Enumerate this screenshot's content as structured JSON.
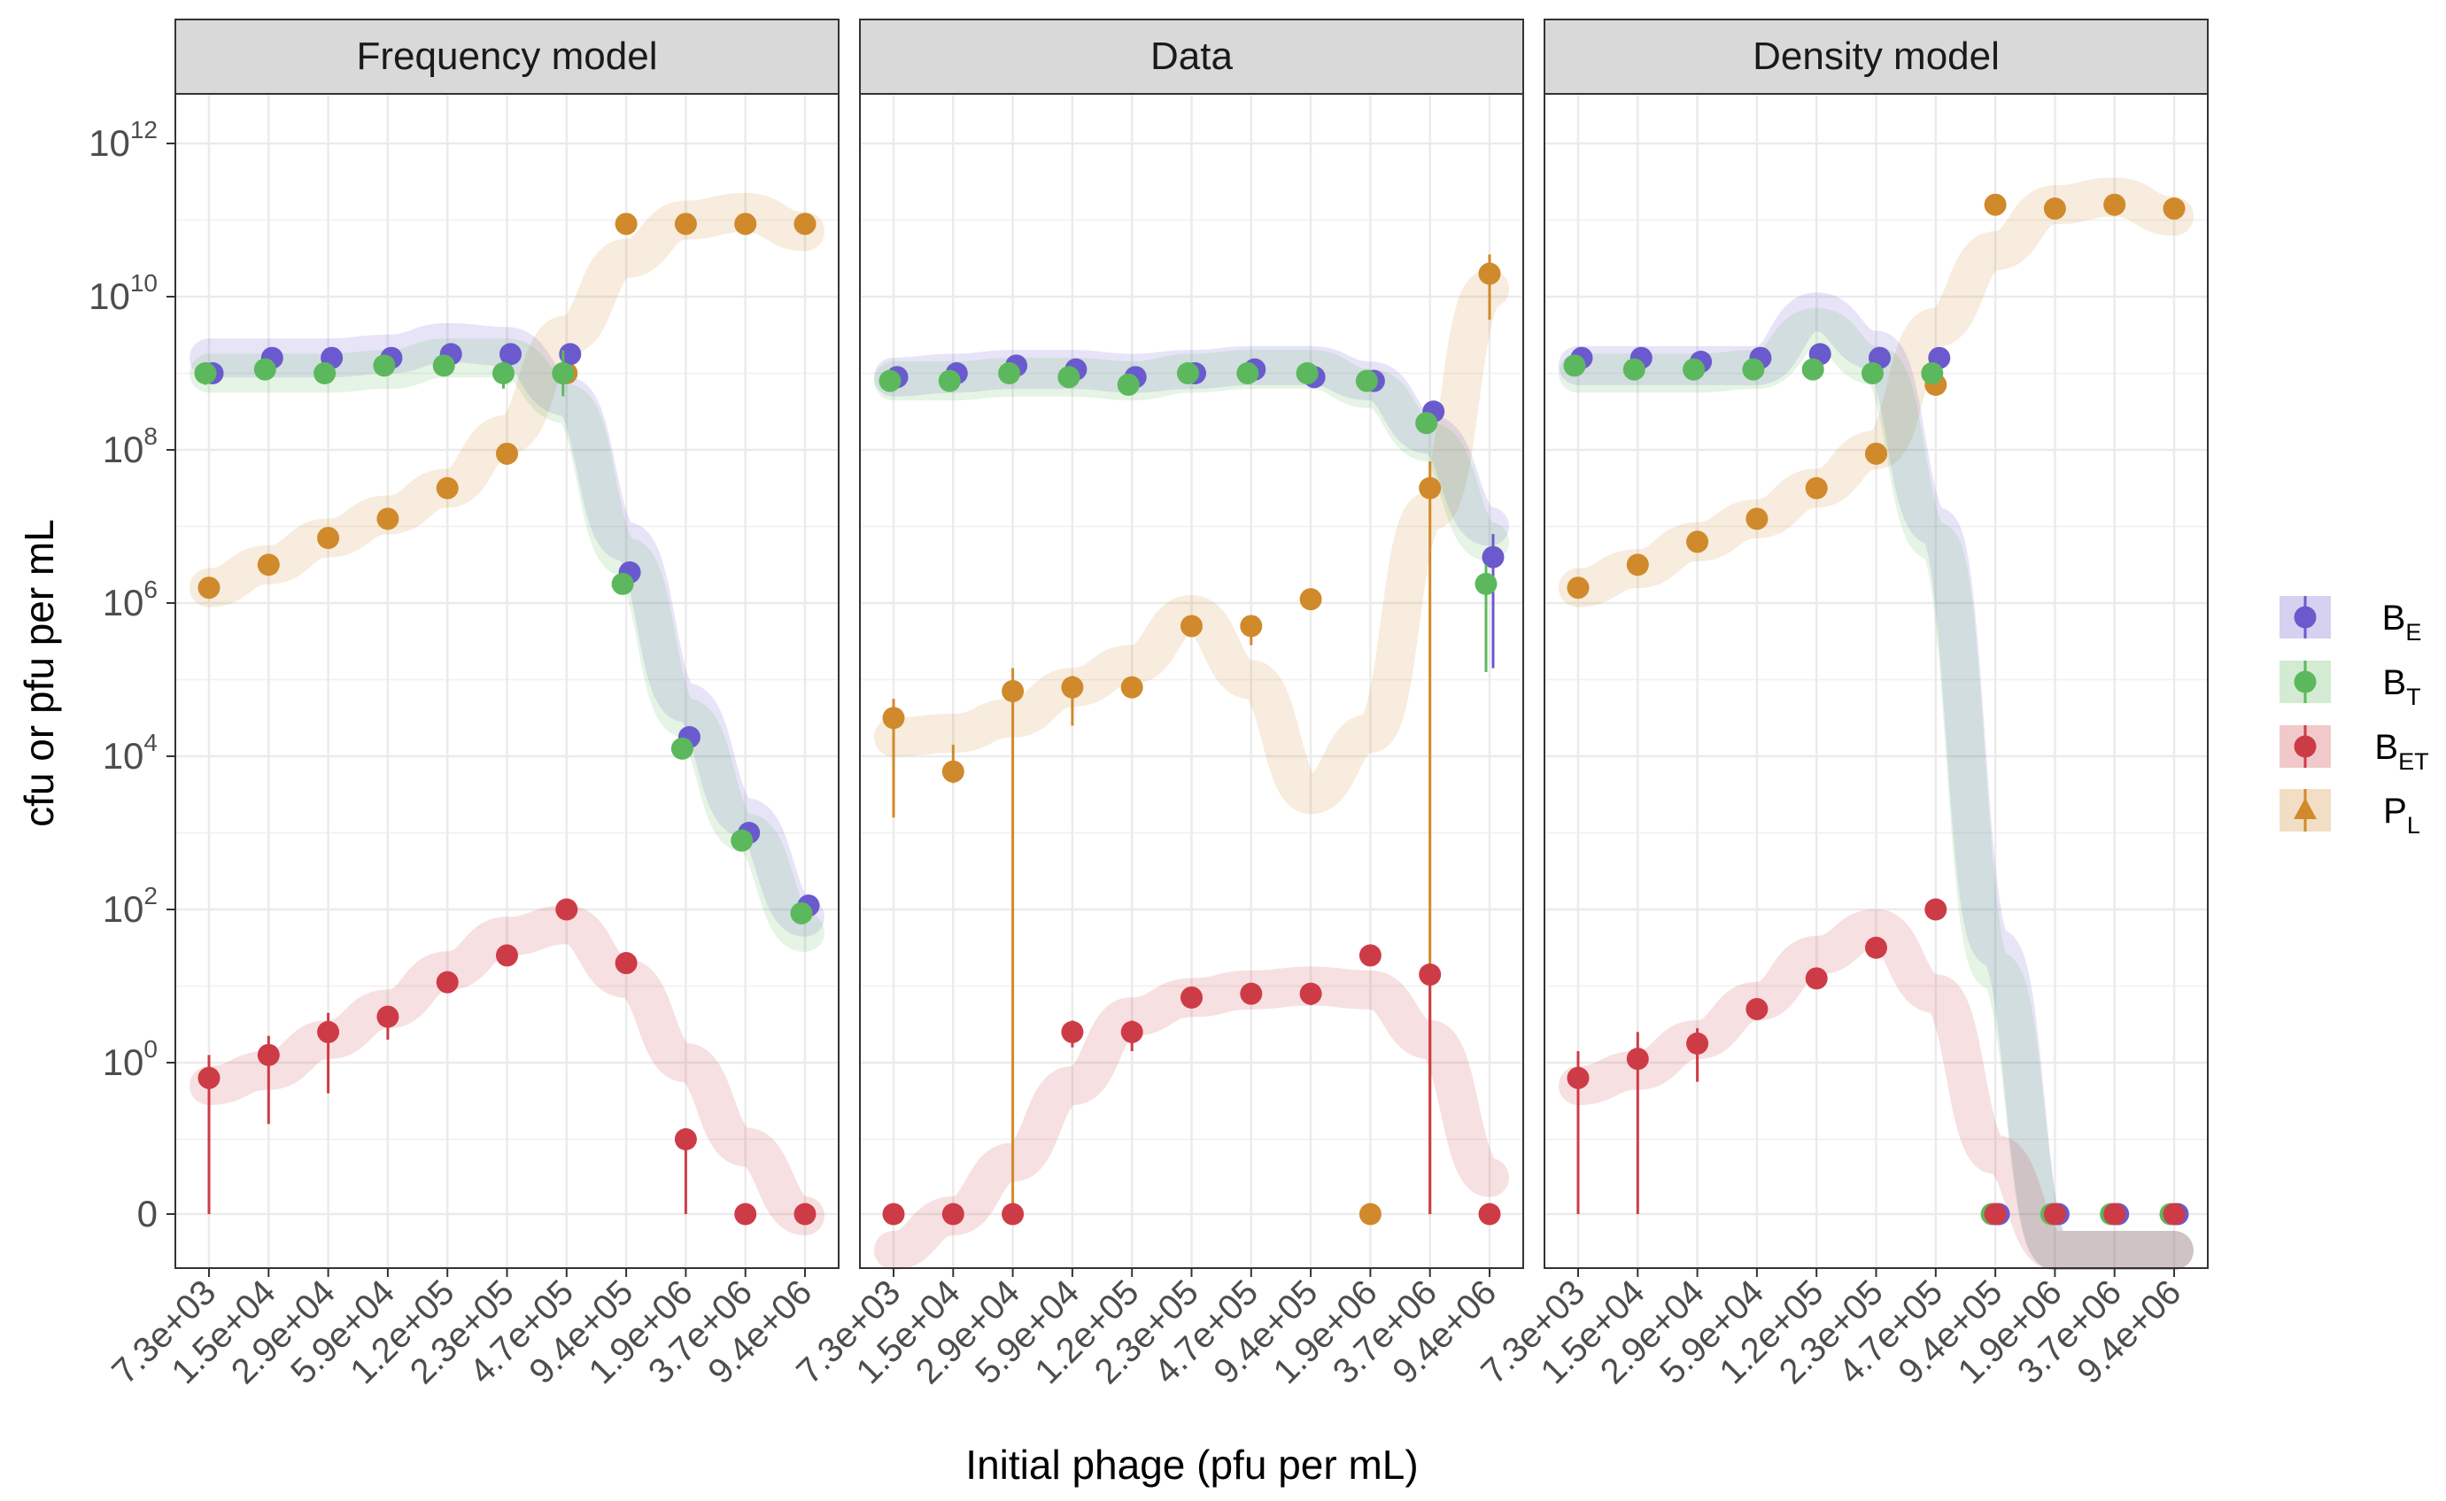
{
  "chart_data": {
    "type": "scatter",
    "xlabel": "Initial phage (pfu per mL)",
    "ylabel": "cfu or pfu per mL",
    "y_scale": "pseudo-log10",
    "y_ticks": [
      {
        "base": "0",
        "exp": ""
      },
      {
        "base": "10",
        "exp": "0"
      },
      {
        "base": "10",
        "exp": "2"
      },
      {
        "base": "10",
        "exp": "4"
      },
      {
        "base": "10",
        "exp": "6"
      },
      {
        "base": "10",
        "exp": "8"
      },
      {
        "base": "10",
        "exp": "10"
      },
      {
        "base": "10",
        "exp": "12"
      }
    ],
    "categories": [
      "7.3e+03",
      "1.5e+04",
      "2.9e+04",
      "5.9e+04",
      "1.2e+05",
      "2.3e+05",
      "4.7e+05",
      "9.4e+05",
      "1.9e+06",
      "3.7e+06",
      "9.4e+06"
    ],
    "grid": true,
    "legend_position": "right",
    "legend": [
      {
        "key": "BE",
        "base": "B",
        "sub": "E",
        "color": "#6a5acd"
      },
      {
        "key": "BT",
        "base": "B",
        "sub": "T",
        "color": "#5cb85c"
      },
      {
        "key": "BET",
        "base": "B",
        "sub": "ET",
        "color": "#cd3c46"
      },
      {
        "key": "PL",
        "base": "P",
        "sub": "L",
        "color": "#d08a2b"
      }
    ],
    "panels": [
      {
        "title": "Frequency model",
        "series": {
          "BE": {
            "values": [
              9.0,
              9.2,
              9.2,
              9.2,
              9.25,
              9.25,
              9.25,
              6.4,
              4.25,
              3.0,
              2.05
            ],
            "lo": [
              null,
              null,
              null,
              null,
              null,
              null,
              null,
              null,
              null,
              null,
              null
            ],
            "hi": [
              null,
              null,
              null,
              null,
              null,
              null,
              null,
              null,
              null,
              null,
              null
            ],
            "smooth": [
              9.2,
              9.2,
              9.2,
              9.25,
              9.4,
              9.35,
              8.7,
              6.8,
              4.7,
              3.2,
              1.9
            ]
          },
          "BT": {
            "values": [
              9.0,
              9.05,
              9.0,
              9.1,
              9.1,
              9.0,
              9.0,
              6.25,
              4.1,
              2.9,
              1.95
            ],
            "lo": [
              8.85,
              null,
              null,
              null,
              null,
              8.8,
              8.7,
              null,
              null,
              null,
              null
            ],
            "hi": [
              9.1,
              null,
              null,
              null,
              null,
              9.15,
              9.3,
              null,
              null,
              null,
              null
            ],
            "smooth": [
              9.0,
              9.0,
              9.0,
              9.05,
              9.2,
              9.2,
              8.6,
              6.6,
              4.5,
              3.0,
              1.7
            ]
          },
          "BET": {
            "values": [
              -0.2,
              0.1,
              0.4,
              0.6,
              1.05,
              1.4,
              2.0,
              1.3,
              -1.0,
              null,
              null
            ],
            "lo": [
              null,
              -0.8,
              -0.4,
              0.3,
              null,
              null,
              null,
              null,
              null,
              null,
              null
            ],
            "hi": [
              0.1,
              0.35,
              0.65,
              null,
              null,
              null,
              null,
              null,
              null,
              null,
              null
            ],
            "zero": [
              false,
              false,
              false,
              false,
              false,
              false,
              false,
              false,
              false,
              true,
              true
            ],
            "lo_to_zero": [
              true,
              false,
              false,
              false,
              false,
              false,
              false,
              false,
              true,
              false,
              false
            ],
            "smooth": [
              -0.3,
              -0.1,
              0.3,
              0.7,
              1.2,
              1.65,
              1.8,
              1.1,
              0.0,
              -1.1,
              -2.0
            ]
          },
          "PL": {
            "values": [
              6.2,
              6.5,
              6.85,
              7.1,
              7.5,
              7.95,
              9.0,
              10.95,
              10.95,
              10.95,
              10.95
            ],
            "lo": [
              null,
              null,
              null,
              null,
              null,
              null,
              null,
              null,
              null,
              null,
              null
            ],
            "hi": [
              null,
              null,
              null,
              null,
              null,
              null,
              null,
              null,
              null,
              null,
              null
            ],
            "smooth": [
              6.2,
              6.5,
              6.85,
              7.15,
              7.5,
              8.2,
              9.5,
              10.5,
              11.0,
              11.1,
              10.85
            ]
          }
        }
      },
      {
        "title": "Data",
        "series": {
          "BE": {
            "values": [
              8.95,
              9.0,
              9.1,
              9.05,
              8.95,
              9.0,
              9.05,
              8.95,
              8.9,
              8.5,
              6.6
            ],
            "lo": [
              null,
              null,
              null,
              null,
              null,
              null,
              null,
              null,
              null,
              null,
              5.15
            ],
            "hi": [
              null,
              null,
              null,
              null,
              null,
              null,
              null,
              null,
              null,
              null,
              6.9
            ],
            "smooth": [
              8.95,
              9.0,
              9.05,
              9.05,
              9.0,
              9.05,
              9.1,
              9.1,
              8.9,
              8.2,
              7.0
            ]
          },
          "BT": {
            "values": [
              8.9,
              8.9,
              9.0,
              8.95,
              8.85,
              9.0,
              9.0,
              9.0,
              8.9,
              8.35,
              6.25
            ],
            "lo": [
              null,
              null,
              null,
              null,
              null,
              null,
              null,
              null,
              null,
              null,
              5.1
            ],
            "hi": [
              null,
              null,
              null,
              null,
              null,
              null,
              null,
              null,
              null,
              null,
              6.5
            ],
            "smooth": [
              8.9,
              8.9,
              8.95,
              8.95,
              8.9,
              9.0,
              9.05,
              9.05,
              8.8,
              8.1,
              6.8
            ]
          },
          "BET": {
            "values": [
              null,
              null,
              null,
              0.4,
              0.4,
              0.85,
              0.9,
              0.9,
              1.4,
              1.15,
              null
            ],
            "lo": [
              null,
              null,
              null,
              0.2,
              0.15,
              null,
              null,
              0.75,
              null,
              null,
              null
            ],
            "hi": [
              null,
              null,
              null,
              0.55,
              0.55,
              null,
              null,
              1.0,
              null,
              null,
              null
            ],
            "zero": [
              true,
              true,
              true,
              false,
              false,
              false,
              false,
              false,
              false,
              false,
              true
            ],
            "lo_to_zero": [
              false,
              false,
              false,
              false,
              false,
              false,
              false,
              false,
              false,
              true,
              false
            ],
            "smooth": [
              -2.5,
              -2.0,
              -1.3,
              -0.3,
              0.6,
              0.85,
              0.95,
              1.0,
              0.95,
              0.3,
              -1.5
            ]
          },
          "PL": {
            "values": [
              4.5,
              3.8,
              4.85,
              4.9,
              4.9,
              5.7,
              5.7,
              6.05,
              null,
              7.5,
              10.3
            ],
            "lo": [
              3.2,
              3.65,
              null,
              4.4,
              null,
              null,
              5.45,
              null,
              null,
              null,
              9.7
            ],
            "hi": [
              4.75,
              4.15,
              5.15,
              5.05,
              null,
              null,
              5.8,
              null,
              null,
              7.85,
              10.55
            ],
            "zero": [
              false,
              false,
              false,
              false,
              false,
              false,
              false,
              false,
              true,
              false,
              false
            ],
            "lo_to_zero": [
              false,
              false,
              true,
              false,
              false,
              false,
              false,
              false,
              false,
              true,
              false
            ],
            "smooth": [
              4.25,
              4.3,
              4.5,
              4.9,
              5.2,
              5.85,
              5.0,
              3.5,
              4.3,
              7.2,
              10.1
            ]
          }
        }
      },
      {
        "title": "Density model",
        "series": {
          "BE": {
            "values": [
              9.2,
              9.2,
              9.15,
              9.2,
              9.25,
              9.2,
              9.2,
              null,
              null,
              null,
              null
            ],
            "lo": [
              null,
              null,
              null,
              null,
              null,
              null,
              null,
              null,
              null,
              null,
              null
            ],
            "hi": [
              null,
              null,
              null,
              null,
              null,
              null,
              null,
              null,
              null,
              null,
              null
            ],
            "zero": [
              false,
              false,
              false,
              false,
              false,
              false,
              false,
              true,
              true,
              true,
              true
            ],
            "smooth": [
              9.1,
              9.1,
              9.1,
              9.1,
              9.8,
              9.3,
              7.0,
              1.5,
              -3.0,
              -3.3,
              -3.2
            ]
          },
          "BT": {
            "values": [
              9.1,
              9.05,
              9.05,
              9.05,
              9.05,
              9.0,
              9.0,
              null,
              null,
              null,
              null
            ],
            "lo": [
              null,
              null,
              null,
              null,
              null,
              null,
              null,
              null,
              null,
              null,
              null
            ],
            "hi": [
              null,
              null,
              null,
              null,
              null,
              null,
              null,
              null,
              null,
              null,
              null
            ],
            "zero": [
              false,
              false,
              false,
              false,
              false,
              false,
              false,
              true,
              true,
              true,
              true
            ],
            "smooth": [
              9.0,
              9.0,
              9.0,
              9.05,
              9.6,
              9.1,
              6.8,
              1.2,
              -3.2,
              -3.4,
              -3.3
            ]
          },
          "BET": {
            "values": [
              -0.2,
              0.05,
              0.25,
              0.7,
              1.1,
              1.5,
              2.0,
              null,
              null,
              null,
              null
            ],
            "lo": [
              null,
              null,
              -0.25,
              null,
              null,
              null,
              null,
              null,
              null,
              null,
              null
            ],
            "hi": [
              0.15,
              0.4,
              0.45,
              null,
              null,
              null,
              null,
              null,
              null,
              null,
              null
            ],
            "zero": [
              false,
              false,
              false,
              false,
              false,
              false,
              false,
              true,
              true,
              true,
              true
            ],
            "lo_to_zero": [
              true,
              true,
              false,
              false,
              false,
              false,
              false,
              false,
              false,
              false,
              false
            ],
            "smooth": [
              -0.3,
              -0.1,
              0.3,
              0.8,
              1.4,
              1.75,
              0.9,
              -1.2,
              -3.0,
              -3.3,
              -3.2
            ]
          },
          "PL": {
            "values": [
              6.2,
              6.5,
              6.8,
              7.1,
              7.5,
              7.95,
              8.85,
              11.2,
              11.15,
              11.2,
              11.15
            ],
            "lo": [
              null,
              null,
              null,
              null,
              null,
              null,
              8.8,
              null,
              null,
              null,
              null
            ],
            "hi": [
              null,
              null,
              null,
              null,
              null,
              null,
              null,
              null,
              null,
              null,
              null
            ],
            "smooth": [
              6.2,
              6.45,
              6.8,
              7.1,
              7.5,
              8.0,
              9.6,
              10.6,
              11.2,
              11.3,
              11.05
            ]
          }
        }
      }
    ]
  }
}
